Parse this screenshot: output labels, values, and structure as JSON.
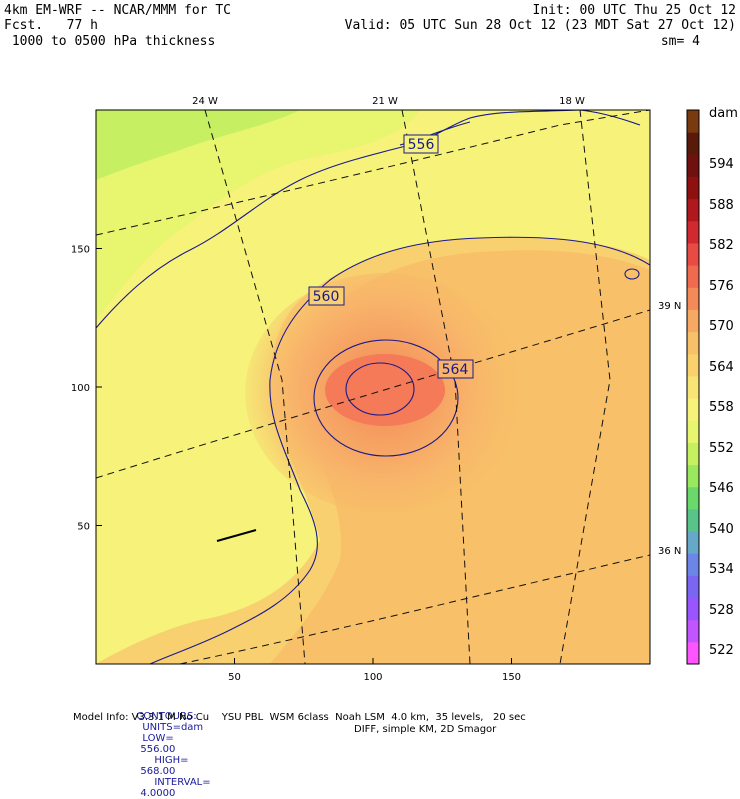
{
  "header": {
    "line1_left": "4km EM-WRF -- NCAR/MMM for TC",
    "line2_left": "Fcst.   77 h",
    "line3_left": " 1000 to 0500 hPa thickness",
    "line1_right": "Init: 00 UTC Thu 25 Oct 12",
    "line2_right": "Valid: 05 UTC Sun 28 Oct 12 (23 MDT Sat 27 Oct 12)",
    "line3_right": "sm= 4"
  },
  "axes": {
    "x_ticks": [
      {
        "value": 50,
        "label": "50"
      },
      {
        "value": 100,
        "label": "100"
      },
      {
        "value": 150,
        "label": "150"
      }
    ],
    "y_ticks": [
      {
        "value": 50,
        "label": "50"
      },
      {
        "value": 100,
        "label": "100"
      },
      {
        "value": 150,
        "label": "150"
      }
    ],
    "x_range": [
      0,
      200
    ],
    "y_range": [
      0,
      200
    ],
    "lon_labels": [
      "24 W",
      "21 W",
      "18 W"
    ],
    "lat_labels": [
      "39 N",
      "36 N"
    ]
  },
  "contours": {
    "labels": [
      "556",
      "560",
      "564"
    ],
    "units": "dam",
    "low": "556.00",
    "high": "568.00",
    "interval": "4.0000"
  },
  "colorbar": {
    "unit": "dam",
    "labels": [
      "594",
      "588",
      "582",
      "576",
      "570",
      "564",
      "558",
      "552",
      "546",
      "540",
      "534",
      "528",
      "522"
    ],
    "colors": [
      "#ff55ff",
      "#c155ff",
      "#9955ff",
      "#7a66f2",
      "#6b86e6",
      "#66a8c8",
      "#58c48a",
      "#6ad86a",
      "#99e85e",
      "#c7ef62",
      "#e8f56e",
      "#f6f27a",
      "#f8e576",
      "#f9d26e",
      "#f8c068",
      "#f7a862",
      "#f48a5a",
      "#f06a50",
      "#e84a44",
      "#d02a30",
      "#b01820",
      "#8e1010",
      "#701010",
      "#5a1a0a",
      "#7a3a10"
    ]
  },
  "footer": {
    "contours_prefix": "CONTOURS:",
    "units_text": "UNITS=dam",
    "low_text": "LOW=",
    "low_value": "556.00",
    "high_text": "HIGH=",
    "high_value": "568.00",
    "interval_text": "INTERVAL=",
    "interval_value": "4.0000",
    "model_line1": "Model Info: V3.3.1 M No Cu    YSU PBL  WSM 6class  Noah LSM  4.0 km,  35 levels,   20 sec",
    "model_line2": "DIFF, simple KM, 2D Smagor"
  }
}
